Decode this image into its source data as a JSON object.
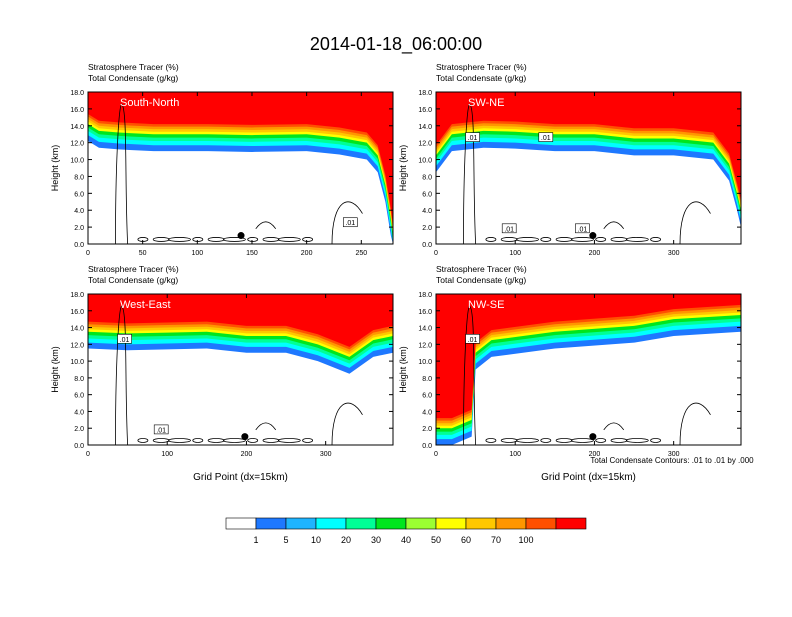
{
  "title": "2014-01-18_06:00:00",
  "colors": {
    "levels": [
      "#ffffff",
      "#1e78ff",
      "#1eb4ff",
      "#00ffff",
      "#00ff96",
      "#00e61e",
      "#9bff32",
      "#ffff00",
      "#ffc800",
      "#ff9600",
      "#ff5000",
      "#ff0000"
    ],
    "contour": "#000000",
    "marker": "#000000"
  },
  "colorbar": {
    "labels": [
      "1",
      "5",
      "10",
      "20",
      "30",
      "40",
      "50",
      "60",
      "70",
      "100"
    ]
  },
  "footnote": "Total Condensate Contours: .01 to .01 by .000",
  "chart_data": [
    {
      "type": "heatmap",
      "panel": "South-North",
      "title_line1": "Stratosphere Tracer   (%)",
      "title_line2": "Total Condensate   (g/kg)",
      "xlabel": "",
      "ylabel": "Height (km)",
      "xlim": [
        0,
        279
      ],
      "ylim": [
        0,
        18
      ],
      "xticks": [
        0,
        50,
        100,
        150,
        200,
        250
      ],
      "yticks": [
        0,
        2,
        4,
        6,
        8,
        10,
        12,
        14,
        16,
        18
      ],
      "tropopause_km": [
        [
          0,
          16.2
        ],
        [
          10,
          15.4
        ],
        [
          28,
          15.2
        ],
        [
          60,
          15.0
        ],
        [
          110,
          15.0
        ],
        [
          150,
          14.9
        ],
        [
          200,
          15.0
        ],
        [
          230,
          14.6
        ],
        [
          255,
          14.0
        ],
        [
          265,
          12.5
        ],
        [
          272,
          9.0
        ],
        [
          277,
          5.0
        ],
        [
          279,
          3.0
        ]
      ],
      "contour_labels": [
        ".01"
      ],
      "marker": {
        "x": 140,
        "y": 1.0
      }
    },
    {
      "type": "heatmap",
      "panel": "SW-NE",
      "title_line1": "Stratosphere Tracer   (%)",
      "title_line2": "Total Condensate   (g/kg)",
      "xlabel": "",
      "ylabel": "Height (km)",
      "xlim": [
        0,
        385
      ],
      "ylim": [
        0,
        18
      ],
      "xticks": [
        0,
        100,
        200,
        300
      ],
      "yticks": [
        0,
        2,
        4,
        6,
        8,
        10,
        12,
        14,
        16,
        18
      ],
      "tropopause_km": [
        [
          0,
          12.5
        ],
        [
          20,
          15.0
        ],
        [
          60,
          15.4
        ],
        [
          100,
          15.3
        ],
        [
          150,
          15.0
        ],
        [
          200,
          15.0
        ],
        [
          250,
          14.5
        ],
        [
          300,
          14.5
        ],
        [
          350,
          14.0
        ],
        [
          370,
          11.5
        ],
        [
          380,
          8.0
        ],
        [
          385,
          6.0
        ]
      ],
      "contour_labels": [
        ".01",
        ".01",
        ".01",
        ".01"
      ],
      "marker": {
        "x": 198,
        "y": 1.0
      }
    },
    {
      "type": "heatmap",
      "panel": "West-East",
      "title_line1": "Stratosphere Tracer   (%)",
      "title_line2": "Total Condensate   (g/kg)",
      "xlabel": "Grid Point (dx=15km)",
      "ylabel": "Height (km)",
      "xlim": [
        0,
        385
      ],
      "ylim": [
        0,
        18
      ],
      "xticks": [
        0,
        100,
        200,
        300
      ],
      "yticks": [
        0,
        2,
        4,
        6,
        8,
        10,
        12,
        14,
        16,
        18
      ],
      "tropopause_km": [
        [
          0,
          15.5
        ],
        [
          50,
          15.3
        ],
        [
          100,
          15.4
        ],
        [
          150,
          15.5
        ],
        [
          200,
          15.0
        ],
        [
          250,
          15.0
        ],
        [
          290,
          14.0
        ],
        [
          330,
          12.5
        ],
        [
          360,
          14.5
        ],
        [
          385,
          15.0
        ]
      ],
      "contour_labels": [
        ".01",
        ".01"
      ],
      "marker": {
        "x": 198,
        "y": 1.0
      }
    },
    {
      "type": "heatmap",
      "panel": "NW-SE",
      "title_line1": "Stratosphere Tracer   (%)",
      "title_line2": "Total Condensate   (g/kg)",
      "xlabel": "Grid Point (dx=15km)",
      "ylabel": "Height (km)",
      "xlim": [
        0,
        385
      ],
      "ylim": [
        0,
        18
      ],
      "xticks": [
        0,
        100,
        200,
        300
      ],
      "yticks": [
        0,
        2,
        4,
        6,
        8,
        10,
        12,
        14,
        16,
        18
      ],
      "tropopause_km": [
        [
          0,
          4.0
        ],
        [
          20,
          4.0
        ],
        [
          45,
          5.0
        ],
        [
          50,
          13.0
        ],
        [
          70,
          14.5
        ],
        [
          150,
          15.5
        ],
        [
          250,
          16.2
        ],
        [
          300,
          17.0
        ],
        [
          385,
          17.5
        ]
      ],
      "contour_labels": [
        ".01"
      ],
      "marker": {
        "x": 198,
        "y": 1.0
      }
    }
  ]
}
